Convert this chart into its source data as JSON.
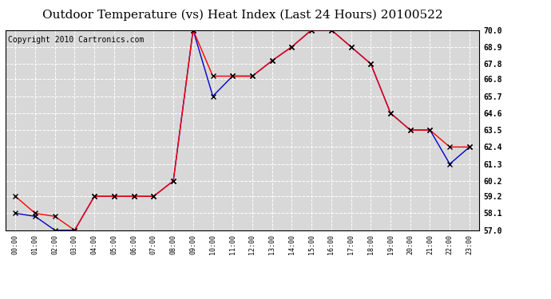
{
  "title": "Outdoor Temperature (vs) Heat Index (Last 24 Hours) 20100522",
  "copyright": "Copyright 2010 Cartronics.com",
  "x_labels": [
    "00:00",
    "01:00",
    "02:00",
    "03:00",
    "04:00",
    "05:00",
    "06:00",
    "07:00",
    "08:00",
    "09:00",
    "10:00",
    "11:00",
    "12:00",
    "13:00",
    "14:00",
    "15:00",
    "16:00",
    "17:00",
    "18:00",
    "19:00",
    "20:00",
    "21:00",
    "22:00",
    "23:00"
  ],
  "red_values": [
    59.2,
    58.1,
    57.9,
    57.0,
    59.2,
    59.2,
    59.2,
    59.2,
    60.2,
    70.0,
    67.0,
    67.0,
    67.0,
    68.0,
    68.9,
    70.0,
    70.0,
    68.9,
    67.8,
    64.6,
    63.5,
    63.5,
    62.4,
    62.4
  ],
  "blue_values": [
    58.1,
    57.9,
    57.0,
    57.0,
    59.2,
    59.2,
    59.2,
    59.2,
    60.2,
    70.0,
    65.7,
    67.0,
    67.0,
    68.0,
    68.9,
    70.0,
    70.0,
    68.9,
    67.8,
    64.6,
    63.5,
    63.5,
    61.3,
    62.4
  ],
  "ylim": [
    57.0,
    70.0
  ],
  "yticks": [
    57.0,
    58.1,
    59.2,
    60.2,
    61.3,
    62.4,
    63.5,
    64.6,
    65.7,
    66.8,
    67.8,
    68.9,
    70.0
  ],
  "red_color": "#ff0000",
  "blue_color": "#0000cc",
  "bg_color": "#d8d8d8",
  "grid_color": "#ffffff",
  "title_fontsize": 11,
  "copyright_fontsize": 7,
  "marker_color": "#000000"
}
